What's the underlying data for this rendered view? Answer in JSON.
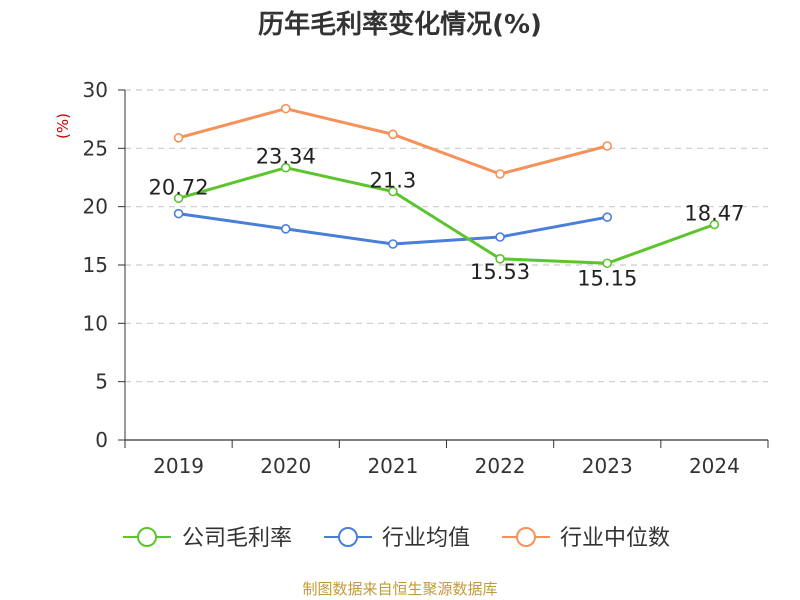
{
  "chart_data": {
    "type": "line",
    "title": "历年毛利率变化情况(%)",
    "ylabel": "(%)",
    "xlabel": "",
    "categories": [
      "2019",
      "2020",
      "2021",
      "2022",
      "2023",
      "2024"
    ],
    "ylim": [
      0,
      30
    ],
    "yticks": [
      0,
      5,
      10,
      15,
      20,
      25,
      30
    ],
    "grid": true,
    "legend_position": "bottom",
    "series": [
      {
        "name": "公司毛利率",
        "color": "#5cc52e",
        "values": [
          20.72,
          23.34,
          21.3,
          15.53,
          15.15,
          18.47
        ],
        "labels": [
          "20.72",
          "23.34",
          "21.3",
          "15.53",
          "15.15",
          "18.47"
        ]
      },
      {
        "name": "行业均值",
        "color": "#4a7fd9",
        "values": [
          19.4,
          18.1,
          16.8,
          17.4,
          19.1,
          null
        ]
      },
      {
        "name": "行业中位数",
        "color": "#f5925a",
        "values": [
          25.9,
          28.4,
          26.2,
          22.8,
          25.2,
          null
        ]
      }
    ]
  },
  "footer": "制图数据来自恒生聚源数据库"
}
